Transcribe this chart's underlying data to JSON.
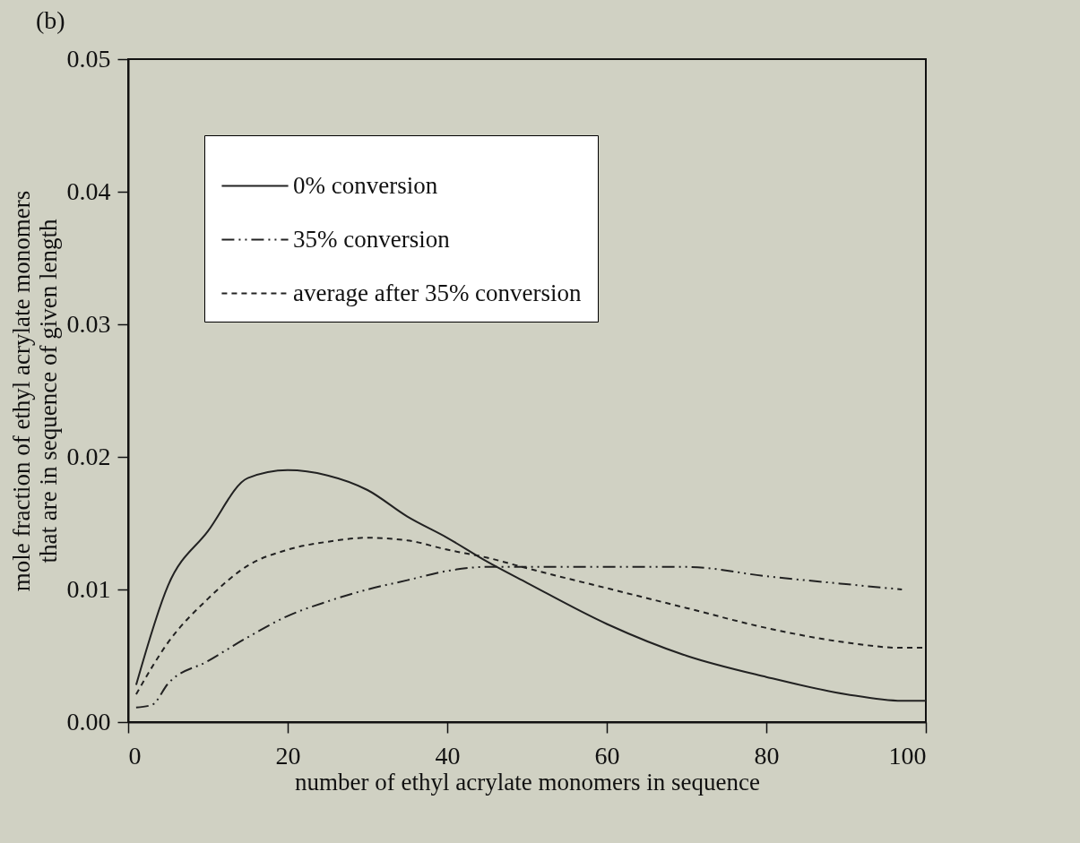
{
  "chart_data": {
    "type": "line",
    "title": "(b)",
    "xlabel": "number of ethyl acrylate monomers in sequence",
    "ylabel": "mole fraction of ethyl acrylate monomers\nthat are in sequence of given length",
    "xlim": [
      0,
      100
    ],
    "ylim": [
      0,
      0.05
    ],
    "xticks": [
      0,
      20,
      40,
      60,
      80,
      100
    ],
    "yticks": [
      {
        "value": 0,
        "label": "0.00"
      },
      {
        "value": 0.01,
        "label": "0.01"
      },
      {
        "value": 0.02,
        "label": "0.02"
      },
      {
        "value": 0.03,
        "label": "0.03"
      },
      {
        "value": 0.04,
        "label": "0.04"
      },
      {
        "value": 0.05,
        "label": "0.05"
      }
    ],
    "grid": false,
    "legend": "top left",
    "series": [
      {
        "name": "0% conversion",
        "color": "#222222",
        "line_style": "solid",
        "x": [
          1,
          5,
          10,
          15,
          20,
          25,
          30,
          35,
          40,
          45,
          50,
          60,
          70,
          80,
          90,
          97,
          100
        ],
        "values": [
          0.0028,
          0.0103,
          0.0144,
          0.0184,
          0.019,
          0.0186,
          0.0175,
          0.0155,
          0.0139,
          0.0121,
          0.0105,
          0.0074,
          0.005,
          0.0034,
          0.0021,
          0.0016,
          0.0016
        ]
      },
      {
        "name": "35% conversion",
        "color": "#222222",
        "line_style": "dotted",
        "x": [
          1,
          3,
          5,
          10,
          15,
          20,
          25,
          30,
          35,
          40,
          45,
          50,
          60,
          70,
          80,
          90,
          97
        ],
        "values": [
          0.0011,
          0.0013,
          0.0029,
          0.0046,
          0.0064,
          0.008,
          0.0091,
          0.01,
          0.0107,
          0.0114,
          0.0117,
          0.0117,
          0.0117,
          0.0117,
          0.011,
          0.0104,
          0.01
        ]
      },
      {
        "name": "average after 35% conversion",
        "color": "#222222",
        "line_style": "dashed",
        "x": [
          1,
          5,
          10,
          15,
          20,
          25,
          30,
          35,
          40,
          45,
          50,
          60,
          70,
          80,
          90,
          97,
          100
        ],
        "values": [
          0.0021,
          0.006,
          0.0093,
          0.0118,
          0.013,
          0.0136,
          0.0139,
          0.0137,
          0.013,
          0.0124,
          0.0116,
          0.0101,
          0.0086,
          0.0071,
          0.006,
          0.0056,
          0.0056
        ]
      }
    ]
  }
}
